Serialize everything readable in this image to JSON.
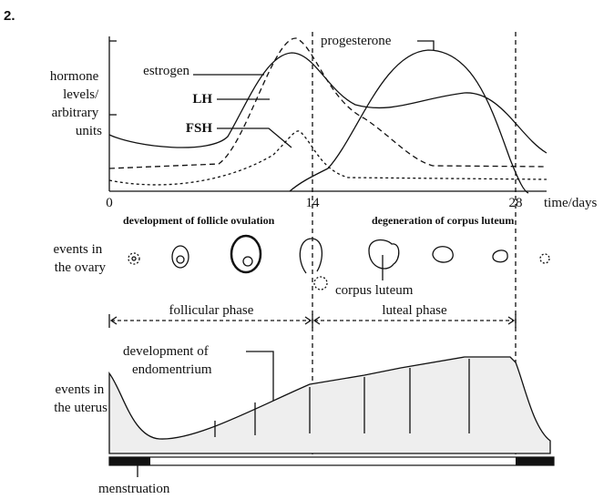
{
  "number": "2.",
  "graph": {
    "y_label": [
      "hormone",
      "levels/",
      "arbitrary",
      "units"
    ],
    "x_ticks": [
      "0",
      "14",
      "28"
    ],
    "x_label": "time/days",
    "curve_labels": {
      "estrogen": "estrogen",
      "lh": "LH",
      "fsh": "FSH",
      "progesterone": "progesterone"
    }
  },
  "ovary": {
    "heading_left": "development of follicle ovulation",
    "heading_right": "degeneration of corpus luteum",
    "label": [
      "events in",
      "the ovary"
    ],
    "corpus_luteum": "corpus luteum"
  },
  "phases": {
    "follicular": "follicular phase",
    "luteal": "luteal phase"
  },
  "uterus": {
    "label": [
      "events in",
      "the uterus"
    ],
    "endometrium": [
      "development of",
      "endomentrium"
    ],
    "menstruation": "menstruation"
  }
}
